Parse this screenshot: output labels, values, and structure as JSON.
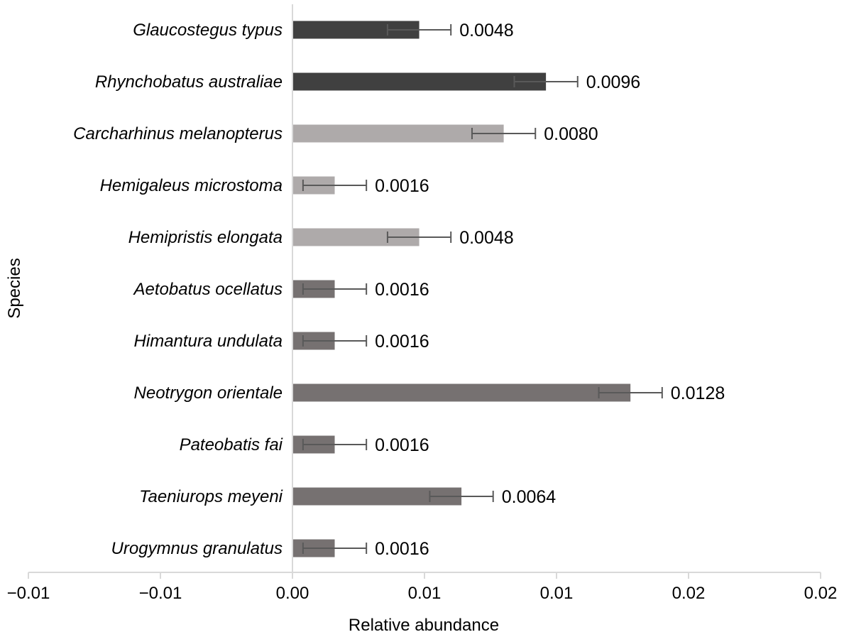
{
  "chart_data": {
    "type": "bar",
    "orientation": "horizontal",
    "title": "",
    "xlabel": "Relative abundance",
    "ylabel": "Species",
    "xlim": [
      -0.01,
      0.02
    ],
    "x_ticks": [
      -0.01,
      -0.005,
      0.0,
      0.005,
      0.01,
      0.015,
      0.02
    ],
    "x_tick_labels": [
      "−0.01",
      "−0.01",
      "0.00",
      "0.01",
      "0.01",
      "0.02",
      "0.02"
    ],
    "grid": false,
    "legend": "none",
    "categories": [
      "Glaucostegus typus",
      "Rhynchobatus australiae",
      "Carcharhinus melanopterus",
      "Hemigaleus microstoma",
      "Hemipristis elongata",
      "Aetobatus ocellatus",
      "Himantura undulata",
      "Neotrygon orientale",
      "Pateobatis fai",
      "Taeniurops meyeni",
      "Urogymnus granulatus"
    ],
    "values": [
      0.0048,
      0.0096,
      0.008,
      0.0016,
      0.0048,
      0.0016,
      0.0016,
      0.0128,
      0.0016,
      0.0064,
      0.0016
    ],
    "data_labels": [
      "0.0048",
      "0.0096",
      "0.0080",
      "0.0016",
      "0.0048",
      "0.0016",
      "0.0016",
      "0.0128",
      "0.0016",
      "0.0064",
      "0.0016"
    ],
    "error": [
      0.0012,
      0.0012,
      0.0012,
      0.0012,
      0.0012,
      0.0012,
      0.0012,
      0.0012,
      0.0012,
      0.0012,
      0.0012
    ],
    "bar_colors": [
      "#404040",
      "#404040",
      "#aeaaaa",
      "#aeaaaa",
      "#aeaaaa",
      "#767171",
      "#767171",
      "#767171",
      "#767171",
      "#767171",
      "#767171"
    ]
  }
}
